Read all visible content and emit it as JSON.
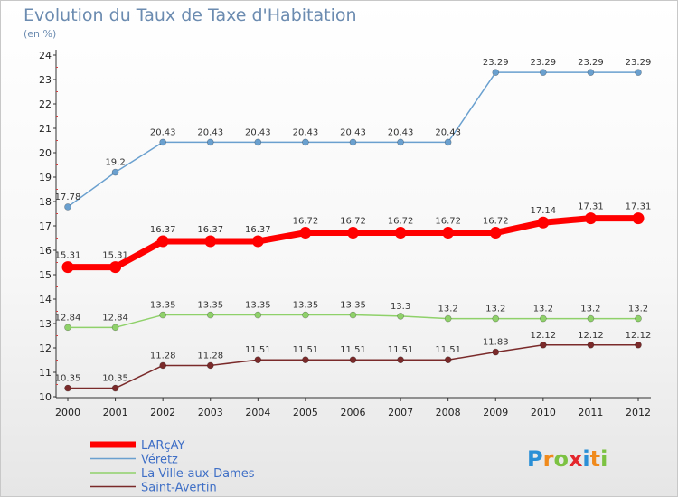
{
  "title": "Evolution du Taux de Taxe d'Habitation",
  "subtitle": "(en %)",
  "logo_text": "Proxiti",
  "chart_data": {
    "type": "line",
    "title": "Evolution du Taux de Taxe d'Habitation",
    "ylabel": "(en %)",
    "xlabel": "",
    "x": [
      "2000",
      "2001",
      "2002",
      "2003",
      "2004",
      "2005",
      "2006",
      "2007",
      "2008",
      "2009",
      "2010",
      "2011",
      "2012"
    ],
    "yticks": [
      10,
      11,
      12,
      13,
      14,
      15,
      16,
      17,
      18,
      19,
      20,
      21,
      22,
      23,
      24
    ],
    "ylim": [
      10,
      24
    ],
    "grid": false,
    "legend_position": "bottom-left",
    "series": [
      {
        "name": "LARçAY",
        "color": "#ff0000",
        "values": [
          15.31,
          15.31,
          16.37,
          16.37,
          16.37,
          16.72,
          16.72,
          16.72,
          16.72,
          16.72,
          17.14,
          17.31,
          17.31
        ],
        "labels": [
          "15.31",
          "15.31",
          "16.37",
          "16.37",
          "16.37",
          "16.72",
          "16.72",
          "16.72",
          "16.72",
          "16.72",
          "17.14",
          "17.31",
          "17.31"
        ]
      },
      {
        "name": "Véretz",
        "color": "#6aa0cf",
        "values": [
          17.78,
          19.2,
          20.43,
          20.43,
          20.43,
          20.43,
          20.43,
          20.43,
          20.43,
          23.29,
          23.29,
          23.29,
          23.29
        ],
        "labels": [
          "17.78",
          "19.2",
          "20.43",
          "20.43",
          "20.43",
          "20.43",
          "20.43",
          "20.43",
          "20.43",
          "23.29",
          "23.29",
          "23.29",
          "23.29"
        ]
      },
      {
        "name": "La Ville-aux-Dames",
        "color": "#8fd16a",
        "values": [
          12.84,
          12.84,
          13.35,
          13.35,
          13.35,
          13.35,
          13.35,
          13.3,
          13.2,
          13.2,
          13.2,
          13.2,
          13.2
        ],
        "labels": [
          "12.84",
          "12.84",
          "13.35",
          "13.35",
          "13.35",
          "13.35",
          "13.35",
          "13.3",
          "13.2",
          "13.2",
          "13.2",
          "13.2",
          "13.2"
        ]
      },
      {
        "name": "Saint-Avertin",
        "color": "#7a2a2a",
        "values": [
          10.35,
          10.35,
          11.28,
          11.28,
          11.51,
          11.51,
          11.51,
          11.51,
          11.51,
          11.83,
          12.12,
          12.12,
          12.12
        ],
        "labels": [
          "10.35",
          "10.35",
          "11.28",
          "11.28",
          "11.51",
          "11.51",
          "11.51",
          "11.51",
          "11.51",
          "11.83",
          "12.12",
          "12.12",
          "12.12"
        ]
      }
    ]
  }
}
